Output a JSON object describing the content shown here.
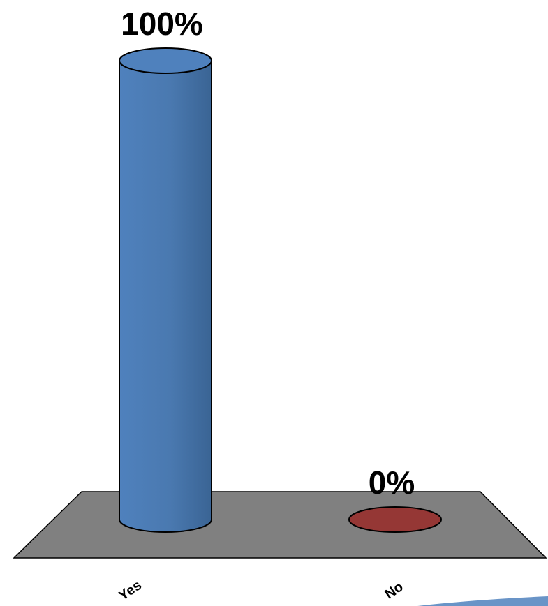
{
  "chart_data": {
    "type": "bar",
    "title": "",
    "xlabel": "",
    "ylabel": "",
    "categories": [
      "Yes",
      "No"
    ],
    "values": [
      100,
      0
    ],
    "data_labels": [
      "100%",
      "0%"
    ],
    "ylim": [
      0,
      100
    ],
    "unit": "%",
    "style": "3d-cylinder",
    "grid": false,
    "legend": "none",
    "colors": {
      "bar_yes": "#4f81bd",
      "bar_yes_dark": "#3a6494",
      "bar_no": "#953735",
      "floor": "#808080",
      "outline": "#000000"
    }
  }
}
